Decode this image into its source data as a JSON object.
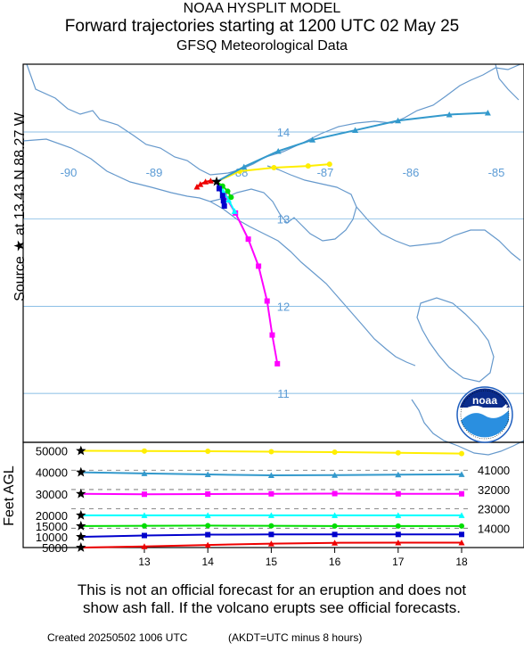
{
  "header": {
    "line1": "NOAA HYSPLIT MODEL",
    "line2": "Forward trajectories starting at 1200 UTC 02 May 25",
    "line3": "GFSQ Meteorological Data"
  },
  "source_label": "Source ★ at 13.43 N 88.27 W",
  "logo_text": "noaa",
  "disclaimer": "This is not an official forecast for an eruption and does not\nshow ash fall. If the volcano erupts see official forecasts.",
  "created": "Created 20250502 1006 UTC",
  "tz_note": "(AKDT=UTC minus 8 hours)",
  "colors": {
    "coast": "#6699cc",
    "grid": "#66aadd",
    "gridlabel": "#5b9bd5",
    "frame": "#000000"
  },
  "chart_data": [
    {
      "type": "line",
      "name": "map",
      "longitude_ticks": [
        "-90",
        "-89",
        "-88",
        "-87",
        "-86",
        "-85"
      ],
      "latitude_ticks": [
        "14",
        "13",
        "12",
        "11"
      ],
      "longitude_values": [
        -90,
        -89,
        -88,
        -87,
        -86,
        -85
      ],
      "latitude_values": [
        14,
        13,
        12,
        11
      ],
      "source": {
        "lat": 13.43,
        "lon": -88.27
      },
      "series": [
        {
          "color": "#ffee00",
          "marker": "circle",
          "lon": [
            -88.27,
            -88.0,
            -87.6,
            -87.2,
            -86.95
          ],
          "lat": [
            13.43,
            13.55,
            13.59,
            13.61,
            13.63
          ]
        },
        {
          "color": "#3399cc",
          "marker": "triangle",
          "lon": [
            -88.27,
            -87.95,
            -87.55,
            -87.15,
            -86.65,
            -86.15,
            -85.55,
            -85.1
          ],
          "lat": [
            13.43,
            13.6,
            13.78,
            13.91,
            14.02,
            14.13,
            14.2,
            14.22
          ]
        },
        {
          "color": "#ff00ff",
          "marker": "square",
          "lon": [
            -88.27,
            -88.18,
            -88.05,
            -87.9,
            -87.78,
            -87.68,
            -87.62,
            -87.56
          ],
          "lat": [
            13.43,
            13.28,
            13.07,
            12.77,
            12.46,
            12.06,
            11.67,
            11.34
          ]
        },
        {
          "color": "#00ffff",
          "marker": "triangle",
          "lon": [
            -88.27,
            -88.2,
            -88.13,
            -88.06
          ],
          "lat": [
            13.43,
            13.33,
            13.22,
            13.09
          ]
        },
        {
          "color": "#00dd00",
          "marker": "circle",
          "lon": [
            -88.27,
            -88.2,
            -88.14,
            -88.1
          ],
          "lat": [
            13.43,
            13.38,
            13.32,
            13.25
          ]
        },
        {
          "color": "#0000cc",
          "marker": "square",
          "lon": [
            -88.27,
            -88.24,
            -88.2,
            -88.19,
            -88.18
          ],
          "lat": [
            13.43,
            13.35,
            13.27,
            13.21,
            13.15
          ]
        },
        {
          "color": "#ee0000",
          "marker": "triangle",
          "lon": [
            -88.27,
            -88.34,
            -88.4,
            -88.46,
            -88.5
          ],
          "lat": [
            13.43,
            13.44,
            13.43,
            13.4,
            13.37
          ]
        }
      ]
    },
    {
      "type": "line",
      "name": "height-time",
      "ylabel": "Feet AGL",
      "x": [
        12,
        13,
        14,
        15,
        16,
        17,
        18
      ],
      "x_ticks": [
        "13",
        "14",
        "15",
        "16",
        "17",
        "18"
      ],
      "x_tick_values": [
        13,
        14,
        15,
        16,
        17,
        18
      ],
      "y_ticks": [
        "50000",
        "40000",
        "30000",
        "20000",
        "15000",
        "10000",
        "5000"
      ],
      "y_tick_values": [
        50000,
        40000,
        30000,
        20000,
        15000,
        10000,
        5000
      ],
      "right_labels": [
        "41000",
        "32000",
        "23000",
        "14000"
      ],
      "right_label_values": [
        41000,
        32000,
        23000,
        14000
      ],
      "series": [
        {
          "color": "#ffee00",
          "marker": "circle",
          "values": [
            50000,
            49900,
            49800,
            49600,
            49400,
            49100,
            48700
          ]
        },
        {
          "color": "#3399cc",
          "marker": "triangle",
          "values": [
            40000,
            39500,
            39000,
            38600,
            38700,
            38900,
            39100
          ]
        },
        {
          "color": "#ff00ff",
          "marker": "square",
          "values": [
            30000,
            29800,
            29900,
            30000,
            30100,
            30000,
            30000
          ]
        },
        {
          "color": "#00ffff",
          "marker": "triangle",
          "values": [
            20000,
            20000,
            20000,
            20000,
            20000,
            20000,
            20000
          ]
        },
        {
          "color": "#00dd00",
          "marker": "circle",
          "values": [
            15000,
            15100,
            15200,
            15100,
            15000,
            15000,
            15000
          ]
        },
        {
          "color": "#0000cc",
          "marker": "square",
          "values": [
            10000,
            10600,
            11000,
            11100,
            11100,
            11100,
            11100
          ]
        },
        {
          "color": "#ee0000",
          "marker": "triangle",
          "values": [
            5000,
            5500,
            6200,
            6800,
            7200,
            7300,
            7300
          ]
        }
      ]
    }
  ]
}
